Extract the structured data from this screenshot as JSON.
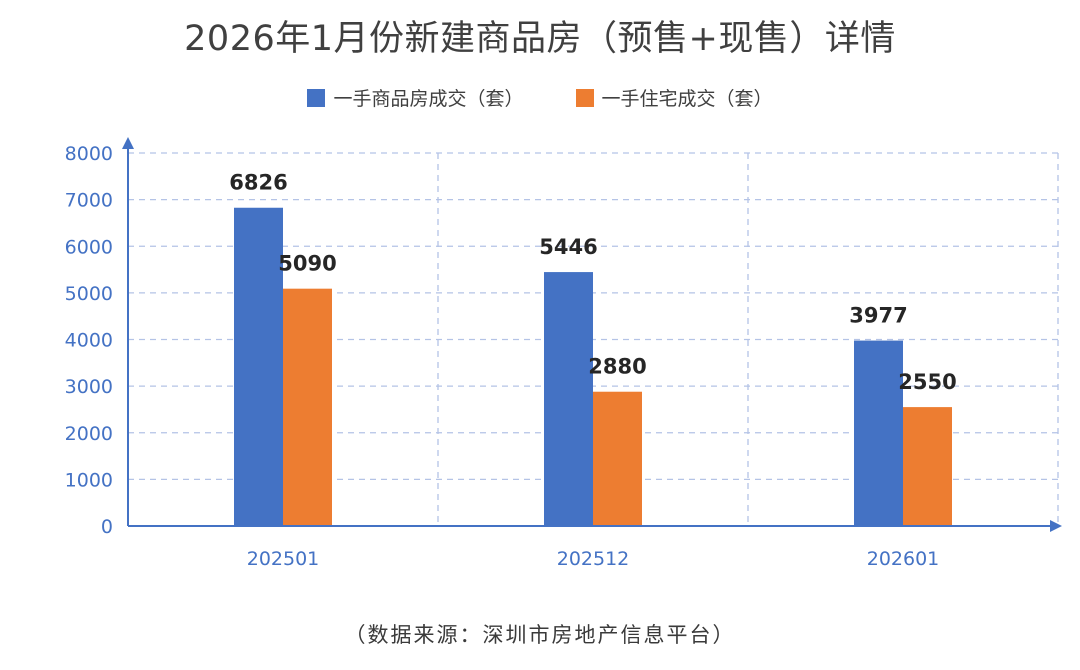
{
  "chart_data": {
    "type": "bar",
    "title": "2026年1月份新建商品房（预售+现售）详情",
    "categories": [
      "202501",
      "202512",
      "202601"
    ],
    "series": [
      {
        "name": "一手商品房成交（套）",
        "values": [
          6826,
          5446,
          3977
        ],
        "color": "#4472c4"
      },
      {
        "name": "一手住宅成交（套）",
        "values": [
          5090,
          2880,
          2550
        ],
        "color": "#ed7d31"
      }
    ],
    "ylim": [
      0,
      8000
    ],
    "yticks": [
      0,
      1000,
      2000,
      3000,
      4000,
      5000,
      6000,
      7000,
      8000
    ],
    "xlabel": "",
    "ylabel": "",
    "grid": true,
    "legend_position": "top-center",
    "axis_color": "#4472c4"
  },
  "source": "（数据来源：深圳市房地产信息平台）"
}
